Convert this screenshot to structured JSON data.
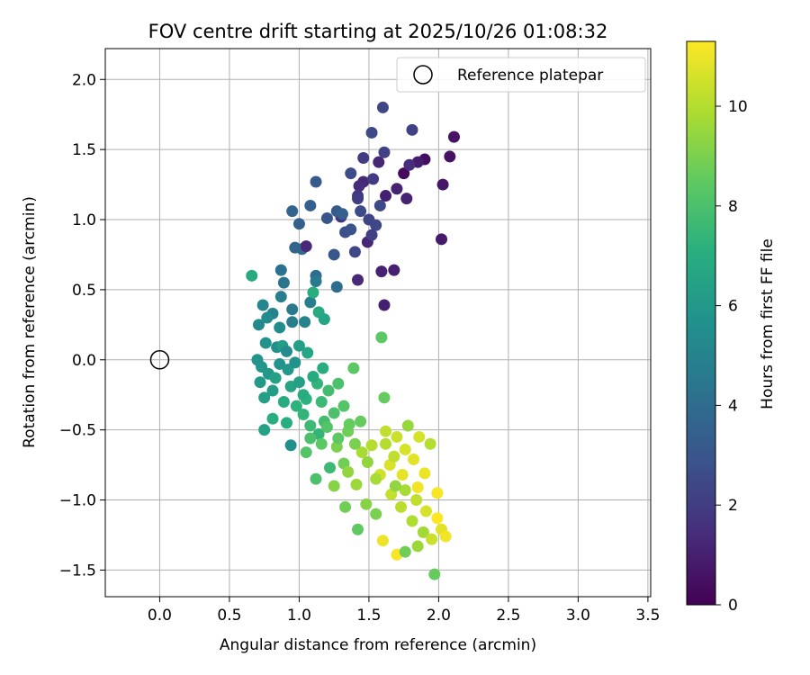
{
  "chart_data": {
    "type": "scatter",
    "title": "FOV centre drift starting at 2025/10/26 01:08:32",
    "xlabel": "Angular distance from reference (arcmin)",
    "ylabel": "Rotation from reference (arcmin)",
    "xlim": [
      -0.39,
      3.52
    ],
    "ylim": [
      -1.69,
      2.22
    ],
    "xticks": [
      "0.0",
      "0.5",
      "1.0",
      "1.5",
      "2.0",
      "2.5",
      "3.0",
      "3.5"
    ],
    "yticks": [
      "−1.5",
      "−1.0",
      "−0.5",
      "0.0",
      "0.5",
      "1.0",
      "1.5",
      "2.0"
    ],
    "grid": true,
    "legend": {
      "placement": "top-right",
      "entries": [
        "Reference platepar"
      ]
    },
    "reference": {
      "x": 0.0,
      "y": 0.0
    },
    "colorbar": {
      "label": "Hours from first FF file",
      "min": 0,
      "max": 11.3,
      "ticks": [
        "0",
        "2",
        "4",
        "6",
        "8",
        "10"
      ],
      "colormap": "viridis"
    },
    "series": [
      {
        "points": [
          [
            1.75,
            1.33,
            0.3
          ],
          [
            1.9,
            1.43,
            0.4
          ],
          [
            2.08,
            1.45,
            0.5
          ],
          [
            2.11,
            1.59,
            0.6
          ],
          [
            2.03,
            1.25,
            0.7
          ],
          [
            2.02,
            0.86,
            0.8
          ],
          [
            1.85,
            1.41,
            0.9
          ],
          [
            1.62,
            1.17,
            1.0
          ],
          [
            1.7,
            1.22,
            1.1
          ],
          [
            1.61,
            0.39,
            1.0
          ],
          [
            1.68,
            0.64,
            1.0
          ],
          [
            1.59,
            0.63,
            1.1
          ],
          [
            1.49,
            0.84,
            1.2
          ],
          [
            1.42,
            0.57,
            1.3
          ],
          [
            1.57,
            1.41,
            1.2
          ],
          [
            1.46,
            1.27,
            1.3
          ],
          [
            1.43,
            1.24,
            1.4
          ],
          [
            1.79,
            1.39,
            1.4
          ],
          [
            1.77,
            1.15,
            1.1
          ],
          [
            1.3,
            1.02,
            1.6
          ],
          [
            1.42,
            1.17,
            1.8
          ],
          [
            1.46,
            1.44,
            2.0
          ],
          [
            1.53,
            1.29,
            2.0
          ],
          [
            1.61,
            1.48,
            2.2
          ],
          [
            1.81,
            1.64,
            2.2
          ],
          [
            1.6,
            1.8,
            2.4
          ],
          [
            1.52,
            1.62,
            2.5
          ],
          [
            1.37,
            1.33,
            2.6
          ],
          [
            1.44,
            1.06,
            2.6
          ],
          [
            1.5,
            1.0,
            2.3
          ],
          [
            1.55,
            0.96,
            2.4
          ],
          [
            1.4,
            0.77,
            2.4
          ],
          [
            1.33,
            0.91,
            2.8
          ],
          [
            1.2,
            1.01,
            3.0
          ],
          [
            1.27,
            1.06,
            3.2
          ],
          [
            1.12,
            1.27,
            3.2
          ],
          [
            1.08,
            1.1,
            3.4
          ],
          [
            1.0,
            0.97,
            3.5
          ],
          [
            0.95,
            1.06,
            3.6
          ],
          [
            1.02,
            0.79,
            3.8
          ],
          [
            1.12,
            0.6,
            4.0
          ],
          [
            1.25,
            0.75,
            3.0
          ],
          [
            1.31,
            1.04,
            3.4
          ],
          [
            1.37,
            0.93,
            2.9
          ],
          [
            1.42,
            1.15,
            2.0
          ],
          [
            1.52,
            0.89,
            2.1
          ],
          [
            1.58,
            1.1,
            2.5
          ],
          [
            1.05,
            0.81,
            1.3
          ],
          [
            1.27,
            0.52,
            4.0
          ],
          [
            0.87,
            0.64,
            4.2
          ],
          [
            0.89,
            0.55,
            4.3
          ],
          [
            0.95,
            0.36,
            4.6
          ],
          [
            1.08,
            0.41,
            4.8
          ],
          [
            1.12,
            0.56,
            4.6
          ],
          [
            0.81,
            0.33,
            5.0
          ],
          [
            0.74,
            0.39,
            5.2
          ],
          [
            0.71,
            0.25,
            5.3
          ],
          [
            0.77,
            0.3,
            5.4
          ],
          [
            0.86,
            0.23,
            5.5
          ],
          [
            0.84,
            0.09,
            5.6
          ],
          [
            0.76,
            0.12,
            5.7
          ],
          [
            0.7,
            0.0,
            5.8
          ],
          [
            0.73,
            -0.05,
            5.9
          ],
          [
            0.78,
            -0.1,
            6.0
          ],
          [
            0.72,
            -0.16,
            6.1
          ],
          [
            0.81,
            -0.22,
            6.2
          ],
          [
            0.75,
            -0.27,
            6.3
          ],
          [
            0.92,
            -0.07,
            6.0
          ],
          [
            0.97,
            -0.02,
            5.7
          ],
          [
            1.06,
            0.05,
            6.6
          ],
          [
            1.0,
            0.1,
            6.4
          ],
          [
            1.14,
            0.34,
            6.8
          ],
          [
            1.1,
            0.48,
            7.0
          ],
          [
            1.18,
            0.29,
            6.6
          ],
          [
            0.66,
            0.6,
            6.8
          ],
          [
            0.88,
            0.1,
            6.2
          ],
          [
            0.83,
            -0.13,
            6.4
          ],
          [
            0.94,
            -0.19,
            6.6
          ],
          [
            0.89,
            -0.3,
            6.9
          ],
          [
            0.98,
            -0.33,
            7.2
          ],
          [
            1.03,
            -0.39,
            7.4
          ],
          [
            1.08,
            -0.47,
            7.6
          ],
          [
            0.91,
            -0.45,
            7.0
          ],
          [
            0.81,
            -0.42,
            7.1
          ],
          [
            0.75,
            -0.5,
            6.5
          ],
          [
            0.94,
            -0.61,
            5.6
          ],
          [
            1.14,
            -0.53,
            7.4
          ],
          [
            1.18,
            -0.44,
            7.8
          ],
          [
            1.25,
            -0.38,
            8.0
          ],
          [
            1.32,
            -0.33,
            8.2
          ],
          [
            1.39,
            -0.06,
            8.4
          ],
          [
            1.59,
            0.16,
            8.4
          ],
          [
            1.61,
            -0.27,
            8.6
          ],
          [
            1.44,
            -0.44,
            8.6
          ],
          [
            1.35,
            -0.51,
            8.8
          ],
          [
            1.27,
            -0.62,
            9.0
          ],
          [
            1.32,
            -0.74,
            8.8
          ],
          [
            1.25,
            -0.9,
            9.2
          ],
          [
            1.35,
            -0.8,
            9.4
          ],
          [
            1.41,
            -0.89,
            9.6
          ],
          [
            1.45,
            -0.66,
            9.8
          ],
          [
            1.52,
            -0.61,
            10.0
          ],
          [
            1.62,
            -0.51,
            10.2
          ],
          [
            1.7,
            -0.55,
            10.4
          ],
          [
            1.76,
            -0.64,
            10.6
          ],
          [
            1.82,
            -0.71,
            10.8
          ],
          [
            1.9,
            -0.81,
            11.0
          ],
          [
            1.99,
            -0.95,
            11.2
          ],
          [
            1.85,
            -0.91,
            11.1
          ],
          [
            1.74,
            -0.82,
            10.9
          ],
          [
            1.65,
            -0.75,
            10.7
          ],
          [
            1.58,
            -0.82,
            10.5
          ],
          [
            1.66,
            -0.96,
            10.3
          ],
          [
            1.73,
            -1.05,
            10.1
          ],
          [
            1.81,
            -1.15,
            9.9
          ],
          [
            1.89,
            -1.23,
            9.7
          ],
          [
            1.95,
            -1.28,
            10.4
          ],
          [
            2.02,
            -1.21,
            10.8
          ],
          [
            2.05,
            -1.26,
            11.1
          ],
          [
            1.99,
            -1.13,
            11.3
          ],
          [
            1.91,
            -1.08,
            10.6
          ],
          [
            1.84,
            -1.0,
            10.2
          ],
          [
            1.76,
            -0.93,
            9.8
          ],
          [
            1.69,
            -0.9,
            9.4
          ],
          [
            1.6,
            -1.29,
            11.0
          ],
          [
            1.7,
            -1.39,
            11.2
          ],
          [
            1.76,
            -1.37,
            8.8
          ],
          [
            1.85,
            -1.33,
            9.6
          ],
          [
            1.97,
            -1.53,
            8.6
          ],
          [
            1.55,
            -1.1,
            9.0
          ],
          [
            1.48,
            -1.03,
            9.2
          ],
          [
            1.42,
            -1.21,
            8.5
          ],
          [
            1.33,
            -1.05,
            8.8
          ],
          [
            1.22,
            -0.77,
            7.6
          ],
          [
            1.12,
            -0.85,
            8.0
          ],
          [
            1.05,
            -0.66,
            8.2
          ],
          [
            1.08,
            -0.56,
            8.0
          ],
          [
            1.16,
            -0.6,
            8.4
          ],
          [
            1.2,
            -0.48,
            8.2
          ],
          [
            1.28,
            -0.56,
            8.4
          ],
          [
            1.36,
            -0.46,
            8.6
          ],
          [
            1.4,
            -0.6,
            9.0
          ],
          [
            1.49,
            -0.73,
            9.4
          ],
          [
            1.55,
            -0.85,
            9.8
          ],
          [
            1.62,
            -0.6,
            10.0
          ],
          [
            1.68,
            -0.69,
            10.2
          ],
          [
            1.86,
            -0.55,
            10.6
          ],
          [
            1.94,
            -0.6,
            10.0
          ],
          [
            1.78,
            -0.47,
            9.5
          ],
          [
            1.05,
            -0.28,
            7.2
          ],
          [
            1.13,
            -0.17,
            7.4
          ],
          [
            1.16,
            -0.3,
            7.6
          ],
          [
            1.21,
            -0.22,
            7.8
          ],
          [
            1.28,
            -0.17,
            8.0
          ],
          [
            1.17,
            -0.06,
            7.0
          ],
          [
            1.1,
            -0.12,
            6.8
          ],
          [
            1.0,
            -0.16,
            6.4
          ],
          [
            1.03,
            -0.25,
            7.0
          ],
          [
            0.86,
            -0.03,
            5.8
          ],
          [
            0.95,
            0.27,
            4.8
          ],
          [
            0.97,
            0.8,
            3.6
          ],
          [
            0.87,
            0.45,
            4.8
          ],
          [
            0.91,
            0.06,
            5.4
          ],
          [
            1.04,
            0.27,
            5.0
          ]
        ]
      }
    ]
  }
}
